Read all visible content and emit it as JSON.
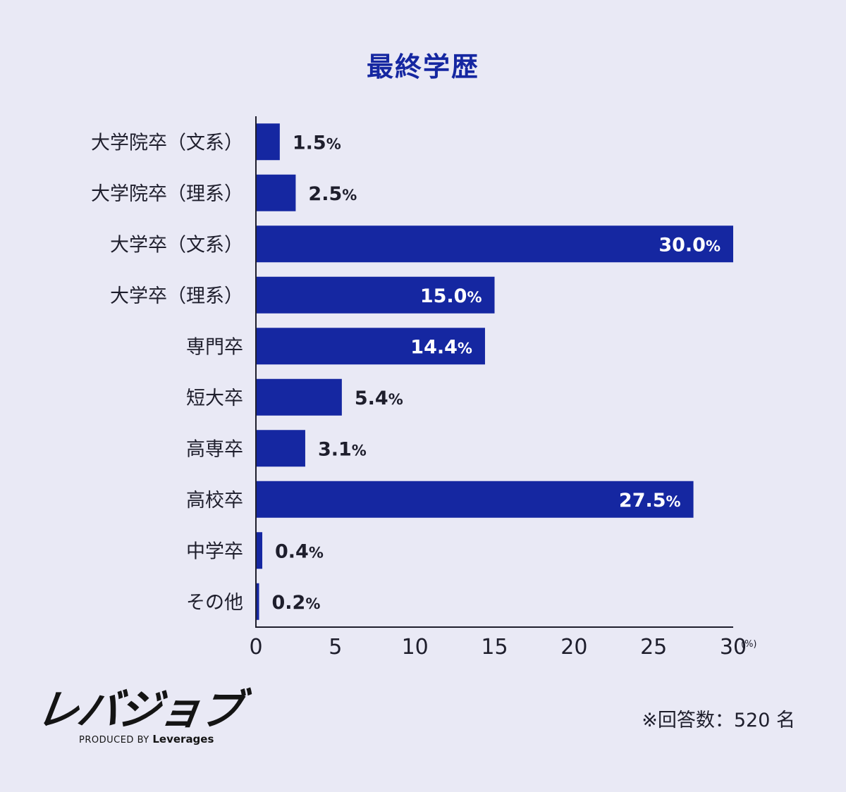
{
  "chart_data": {
    "type": "bar",
    "orientation": "horizontal",
    "title": "最終学歴",
    "categories": [
      "大学院卒（文系）",
      "大学院卒（理系）",
      "大学卒（文系）",
      "大学卒（理系）",
      "専門卒",
      "短大卒",
      "高専卒",
      "高校卒",
      "中学卒",
      "その他"
    ],
    "values": [
      1.5,
      2.5,
      30.0,
      15.0,
      14.4,
      5.4,
      3.1,
      27.5,
      0.4,
      0.2
    ],
    "value_labels": [
      "1.5",
      "2.5",
      "30.0",
      "15.0",
      "14.4",
      "5.4",
      "3.1",
      "27.5",
      "0.4",
      "0.2"
    ],
    "value_suffix": "%",
    "xlim": [
      0,
      30
    ],
    "xticks": [
      "0",
      "5",
      "10",
      "15",
      "20",
      "25",
      "30"
    ],
    "xunit": "(%)",
    "bar_color": "#1527a1",
    "grid": false
  },
  "footer": {
    "logo_text": "レバジョブ",
    "logo_sub_prefix": "PRODUCED BY",
    "logo_sub_brand": "Leverages",
    "note": "※回答数：520 名"
  }
}
